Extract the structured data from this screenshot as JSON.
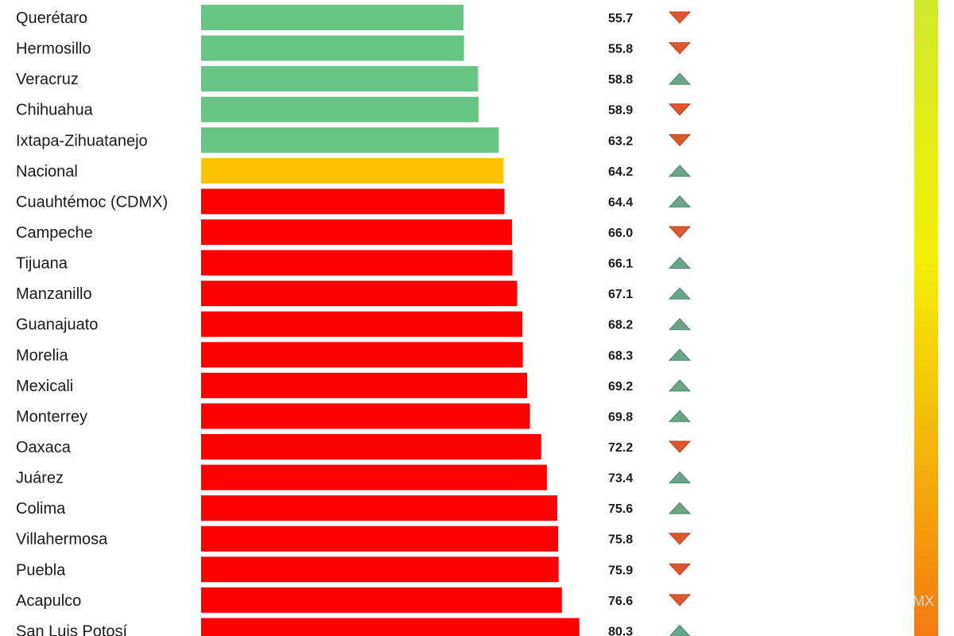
{
  "chart_data": {
    "type": "bar",
    "orientation": "horizontal",
    "categories": [
      "Querétaro",
      "Hermosillo",
      "Veracruz",
      "Chihuahua",
      "Ixtapa-Zihuatanejo",
      "Nacional",
      "Cuauhtémoc (CDMX)",
      "Campeche",
      "Tijuana",
      "Manzanillo",
      "Guanajuato",
      "Morelia",
      "Mexicali",
      "Monterrey",
      "Oaxaca",
      "Juárez",
      "Colima",
      "Villahermosa",
      "Puebla",
      "Acapulco",
      "San Luis Potosí"
    ],
    "values": [
      55.7,
      55.8,
      58.8,
      58.9,
      63.2,
      64.2,
      64.4,
      66.0,
      66.1,
      67.1,
      68.2,
      68.3,
      69.2,
      69.8,
      72.2,
      73.4,
      75.6,
      75.8,
      75.9,
      76.6,
      80.3
    ],
    "value_labels": [
      "55.7",
      "55.8",
      "58.8",
      "58.9",
      "63.2",
      "64.2",
      "64.4",
      "66.0",
      "66.1",
      "67.1",
      "68.2",
      "68.3",
      "69.2",
      "69.8",
      "72.2",
      "73.4",
      "75.6",
      "75.8",
      "75.9",
      "76.6",
      "80.3"
    ],
    "trends": [
      "down",
      "down",
      "up",
      "down",
      "down",
      "up",
      "up",
      "down",
      "up",
      "up",
      "up",
      "up",
      "up",
      "up",
      "down",
      "up",
      "up",
      "down",
      "down",
      "down",
      "up"
    ],
    "groups": [
      "below",
      "below",
      "below",
      "below",
      "below",
      "national",
      "above",
      "above",
      "above",
      "above",
      "above",
      "above",
      "above",
      "above",
      "above",
      "above",
      "above",
      "above",
      "above",
      "above",
      "above"
    ],
    "xlim": [
      0,
      80.3
    ],
    "grid": false,
    "legend": "none"
  },
  "colors": {
    "below": "#66c485",
    "national": "#fec300",
    "above": "#fe0000",
    "trend_up": "#6aa58a",
    "trend_down": "#e0562e",
    "scale_top": "#cfe82c",
    "scale_mid": "#f5f000",
    "scale_bottom": "#f57a10"
  },
  "watermark": "MX"
}
